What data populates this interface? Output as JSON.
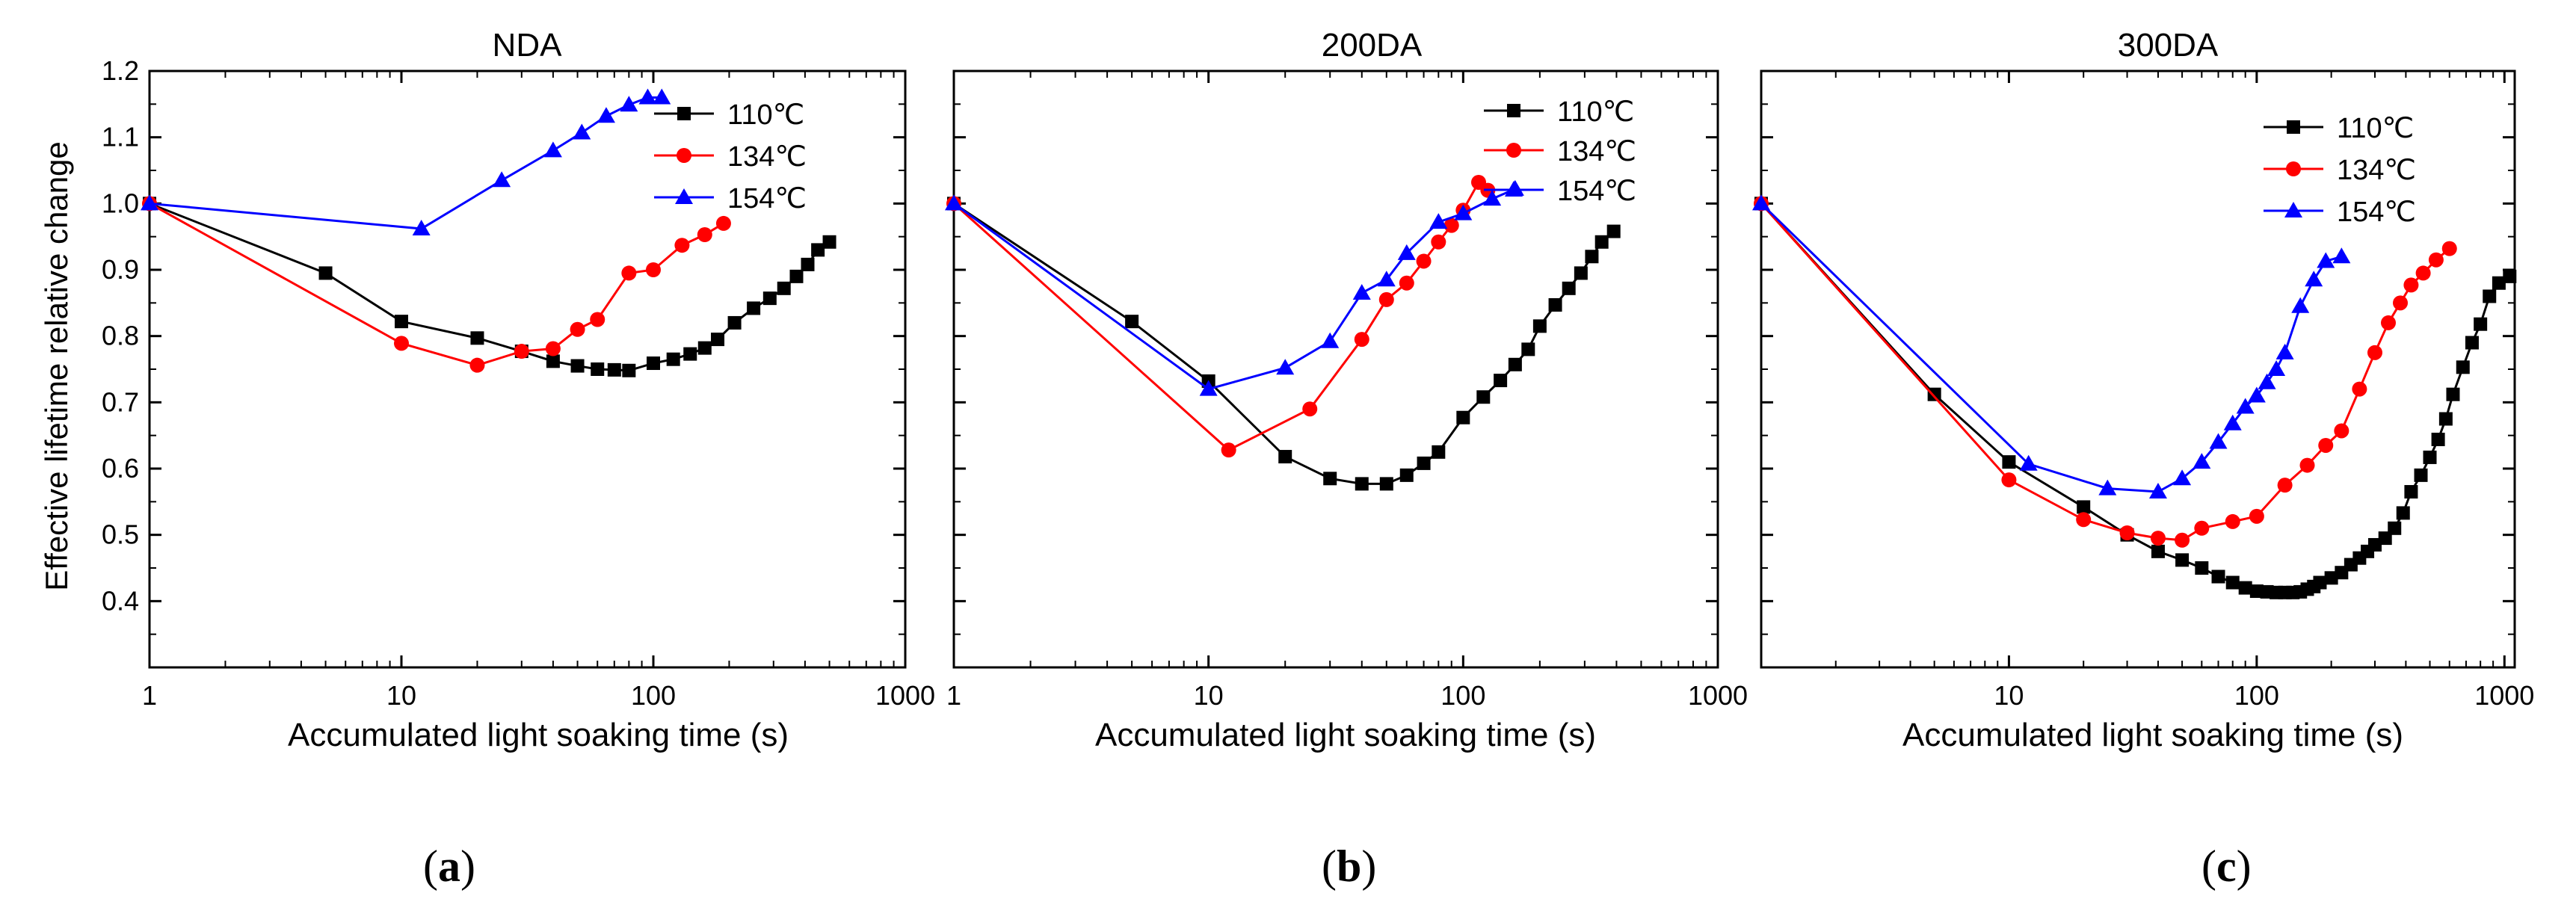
{
  "figure": {
    "ylabel": "Effective lifetime relative change",
    "panel_labels": [
      {
        "open": "(",
        "letter": "a",
        "close": ")"
      },
      {
        "open": "(",
        "letter": "b",
        "close": ")"
      },
      {
        "open": "(",
        "letter": "c",
        "close": ")"
      }
    ]
  },
  "chart_data": [
    {
      "type": "line",
      "title": "NDA",
      "xlabel": "Accumulated light soaking time (s)",
      "ylabel": "Effective lifetime relative change",
      "x_scale": "log",
      "xlim": [
        1,
        1000
      ],
      "ylim": [
        0.3,
        1.2
      ],
      "x_ticks": [
        1,
        10,
        100,
        1000
      ],
      "x_tick_labels": [
        "1",
        "10",
        "100",
        "1000"
      ],
      "y_ticks": [
        0.4,
        0.5,
        0.6,
        0.7,
        0.8,
        0.9,
        1.0,
        1.1,
        1.2
      ],
      "y_tick_labels": [
        "0.4",
        "0.5",
        "0.6",
        "0.7",
        "0.8",
        "0.9",
        "1.0",
        "1.1",
        "1.2"
      ],
      "legend_position": "top-right",
      "series": [
        {
          "name": "110℃",
          "color": "#000000",
          "marker": "square",
          "x": [
            1,
            5,
            10,
            20,
            30,
            40,
            50,
            60,
            70,
            80,
            100,
            120,
            140,
            160,
            180,
            210,
            250,
            290,
            330,
            370,
            410,
            450,
            500
          ],
          "y": [
            1.0,
            0.895,
            0.822,
            0.797,
            0.777,
            0.762,
            0.755,
            0.75,
            0.749,
            0.748,
            0.759,
            0.765,
            0.773,
            0.782,
            0.795,
            0.82,
            0.842,
            0.857,
            0.872,
            0.89,
            0.908,
            0.93,
            0.942
          ]
        },
        {
          "name": "134℃",
          "color": "#ff0000",
          "marker": "circle",
          "x": [
            1,
            10,
            20,
            30,
            40,
            50,
            60,
            80,
            100,
            130,
            160,
            190
          ],
          "y": [
            1.0,
            0.789,
            0.756,
            0.777,
            0.781,
            0.81,
            0.825,
            0.895,
            0.9,
            0.937,
            0.953,
            0.97
          ]
        },
        {
          "name": "154℃",
          "color": "#0000ff",
          "marker": "triangle",
          "x": [
            1,
            12,
            25,
            40,
            52,
            65,
            80,
            95,
            108
          ],
          "y": [
            1.0,
            0.962,
            1.035,
            1.08,
            1.107,
            1.132,
            1.149,
            1.16,
            1.16
          ]
        }
      ]
    },
    {
      "type": "line",
      "title": "200DA",
      "xlabel": "Accumulated light soaking time (s)",
      "ylabel": "",
      "x_scale": "log",
      "xlim": [
        1,
        1000
      ],
      "ylim": [
        0.3,
        1.2
      ],
      "x_ticks": [
        1,
        10,
        100,
        1000
      ],
      "x_tick_labels": [
        "1",
        "10",
        "100",
        "1000"
      ],
      "legend_position": "top-right",
      "series": [
        {
          "name": "110℃",
          "color": "#000000",
          "marker": "square",
          "x": [
            1,
            5,
            10,
            20,
            30,
            40,
            50,
            60,
            70,
            80,
            100,
            120,
            140,
            160,
            180,
            200,
            230,
            260,
            290,
            320,
            350,
            390
          ],
          "y": [
            1.0,
            0.822,
            0.732,
            0.618,
            0.585,
            0.577,
            0.577,
            0.59,
            0.608,
            0.625,
            0.677,
            0.708,
            0.733,
            0.757,
            0.78,
            0.815,
            0.847,
            0.872,
            0.895,
            0.92,
            0.942,
            0.958
          ]
        },
        {
          "name": "134℃",
          "color": "#ff0000",
          "marker": "circle",
          "x": [
            1,
            12,
            25,
            40,
            50,
            60,
            70,
            80,
            90,
            100,
            115,
            125
          ],
          "y": [
            1.0,
            0.628,
            0.69,
            0.795,
            0.855,
            0.88,
            0.913,
            0.942,
            0.967,
            0.99,
            1.032,
            1.02
          ]
        },
        {
          "name": "154℃",
          "color": "#0000ff",
          "marker": "triangle",
          "x": [
            1,
            10,
            20,
            30,
            40,
            50,
            60,
            80,
            100,
            130,
            160
          ],
          "y": [
            1.0,
            0.72,
            0.752,
            0.792,
            0.865,
            0.885,
            0.925,
            0.972,
            0.985,
            1.007,
            1.022
          ]
        }
      ]
    },
    {
      "type": "line",
      "title": "300DA",
      "xlabel": "Accumulated light soaking time (s)",
      "ylabel": "",
      "x_scale": "log",
      "xlim": [
        1,
        1100
      ],
      "ylim": [
        0.3,
        1.2
      ],
      "x_ticks": [
        1,
        10,
        100,
        1000
      ],
      "x_tick_labels": [
        "",
        "10",
        "100",
        "1000"
      ],
      "legend_position": "top-right",
      "series": [
        {
          "name": "110℃",
          "color": "#000000",
          "marker": "square",
          "x": [
            1,
            5,
            10,
            20,
            30,
            40,
            50,
            60,
            70,
            80,
            90,
            100,
            110,
            120,
            130,
            140,
            150,
            160,
            170,
            180,
            200,
            220,
            240,
            260,
            280,
            300,
            330,
            360,
            390,
            420,
            460,
            500,
            540,
            580,
            620,
            680,
            740,
            800,
            870,
            950,
            1050
          ],
          "y": [
            1.0,
            0.712,
            0.61,
            0.542,
            0.5,
            0.475,
            0.462,
            0.45,
            0.437,
            0.428,
            0.42,
            0.415,
            0.414,
            0.413,
            0.413,
            0.413,
            0.414,
            0.418,
            0.422,
            0.428,
            0.435,
            0.443,
            0.455,
            0.465,
            0.475,
            0.485,
            0.495,
            0.51,
            0.533,
            0.565,
            0.59,
            0.617,
            0.644,
            0.675,
            0.712,
            0.753,
            0.79,
            0.818,
            0.86,
            0.88,
            0.89
          ]
        },
        {
          "name": "134℃",
          "color": "#ff0000",
          "marker": "circle",
          "x": [
            1,
            10,
            20,
            30,
            40,
            50,
            60,
            80,
            100,
            130,
            160,
            190,
            220,
            260,
            300,
            340,
            380,
            420,
            470,
            530,
            600
          ],
          "y": [
            1.0,
            0.583,
            0.523,
            0.503,
            0.495,
            0.492,
            0.51,
            0.52,
            0.528,
            0.575,
            0.605,
            0.635,
            0.657,
            0.72,
            0.775,
            0.82,
            0.85,
            0.877,
            0.895,
            0.915,
            0.932
          ]
        },
        {
          "name": "154℃",
          "color": "#0000ff",
          "marker": "triangle",
          "x": [
            1,
            12,
            25,
            40,
            50,
            60,
            70,
            80,
            90,
            100,
            110,
            120,
            130,
            150,
            170,
            190,
            220
          ],
          "y": [
            1.0,
            0.607,
            0.57,
            0.565,
            0.585,
            0.61,
            0.64,
            0.668,
            0.693,
            0.71,
            0.73,
            0.75,
            0.775,
            0.845,
            0.885,
            0.913,
            0.92
          ]
        }
      ]
    }
  ]
}
